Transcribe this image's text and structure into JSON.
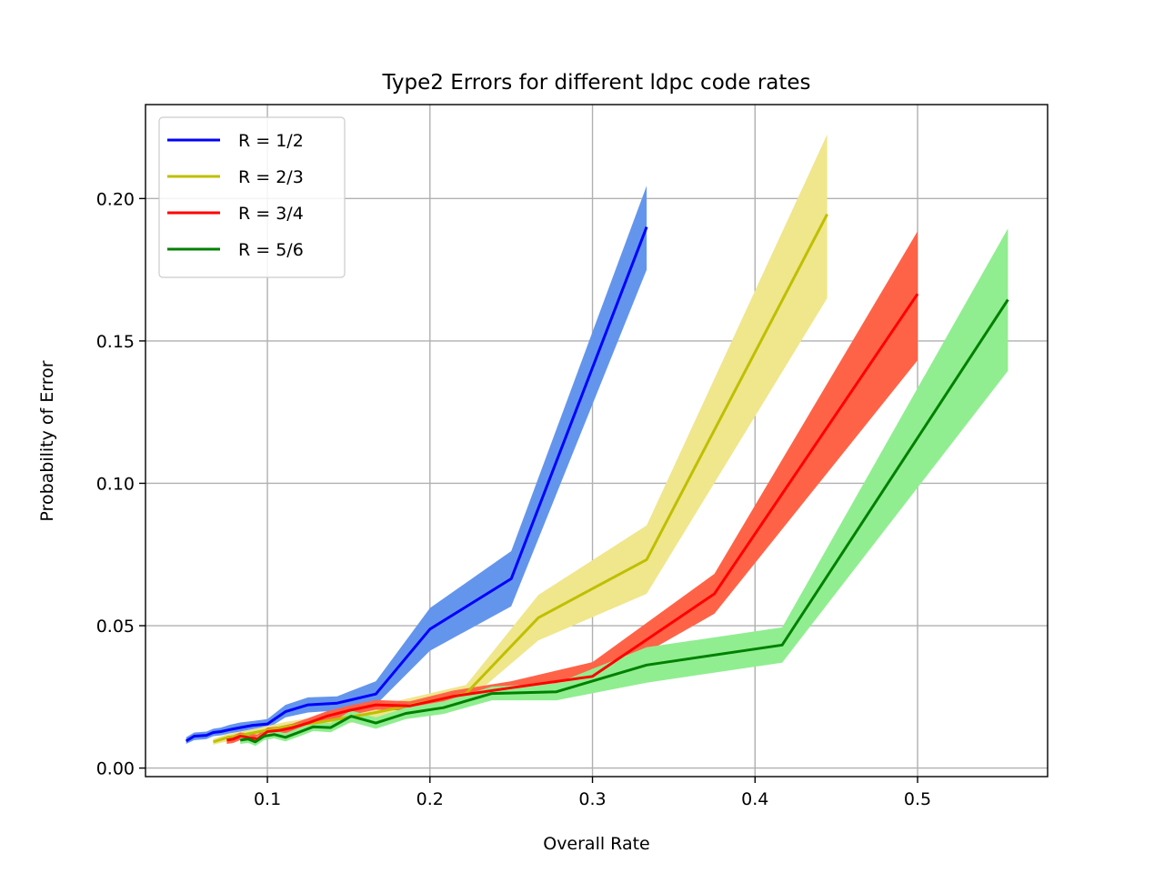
{
  "chart_data": {
    "type": "line",
    "title": "Type2 Errors for different ldpc code rates",
    "xlabel": "Overall Rate",
    "ylabel": "Probability of Error",
    "xlim": [
      0.025,
      0.58
    ],
    "ylim": [
      -0.003,
      0.233
    ],
    "xticks": [
      {
        "value": 0.1,
        "label": "0.1"
      },
      {
        "value": 0.2,
        "label": "0.2"
      },
      {
        "value": 0.3,
        "label": "0.3"
      },
      {
        "value": 0.4,
        "label": "0.4"
      },
      {
        "value": 0.5,
        "label": "0.5"
      }
    ],
    "yticks": [
      {
        "value": 0.0,
        "label": "0.00"
      },
      {
        "value": 0.05,
        "label": "0.05"
      },
      {
        "value": 0.1,
        "label": "0.10"
      },
      {
        "value": 0.15,
        "label": "0.15"
      },
      {
        "value": 0.2,
        "label": "0.20"
      }
    ],
    "grid": true,
    "legend_position": "top-left",
    "series": [
      {
        "name": "R = 1/2",
        "color": "#0000ff",
        "band_color": "#6495ed",
        "x": [
          0.05,
          0.055,
          0.0625,
          0.0667,
          0.0714,
          0.0769,
          0.0833,
          0.0909,
          0.1,
          0.1111,
          0.125,
          0.1429,
          0.1667,
          0.2,
          0.25,
          0.3333
        ],
        "y": [
          0.0095,
          0.0112,
          0.0115,
          0.0125,
          0.0128,
          0.0135,
          0.0142,
          0.015,
          0.0155,
          0.0198,
          0.0222,
          0.0228,
          0.026,
          0.0488,
          0.0665,
          0.19
        ],
        "lower": [
          0.0085,
          0.0098,
          0.0102,
          0.0112,
          0.0115,
          0.0122,
          0.0128,
          0.0135,
          0.0138,
          0.0178,
          0.0195,
          0.0202,
          0.0222,
          0.0412,
          0.0568,
          0.175
        ],
        "upper": [
          0.0108,
          0.0125,
          0.0128,
          0.0138,
          0.0142,
          0.0152,
          0.016,
          0.0165,
          0.0172,
          0.0222,
          0.0248,
          0.0252,
          0.0305,
          0.0562,
          0.0762,
          0.2045
        ]
      },
      {
        "name": "R = 2/3",
        "color": "#bfbf00",
        "band_color": "#f0e68c",
        "x": [
          0.0667,
          0.0741,
          0.0833,
          0.0952,
          0.1111,
          0.1333,
          0.1667,
          0.2222,
          0.2667,
          0.3333,
          0.4444
        ],
        "y": [
          0.0092,
          0.0105,
          0.0115,
          0.0128,
          0.0145,
          0.0162,
          0.0195,
          0.0262,
          0.0528,
          0.0732,
          0.1945
        ],
        "lower": [
          0.0082,
          0.0092,
          0.0101,
          0.0112,
          0.0128,
          0.0142,
          0.0172,
          0.0232,
          0.0448,
          0.0612,
          0.165
        ],
        "upper": [
          0.0102,
          0.0118,
          0.0128,
          0.0142,
          0.0162,
          0.0182,
          0.0218,
          0.0292,
          0.0608,
          0.0852,
          0.2225
        ]
      },
      {
        "name": "R = 3/4",
        "color": "#ff0000",
        "band_color": "#ff6347",
        "x": [
          0.075,
          0.0789,
          0.0833,
          0.0882,
          0.0938,
          0.1,
          0.1071,
          0.1154,
          0.125,
          0.1364,
          0.15,
          0.1667,
          0.1875,
          0.2143,
          0.25,
          0.3,
          0.375,
          0.5
        ],
        "y": [
          0.0098,
          0.0102,
          0.0112,
          0.0108,
          0.0102,
          0.0128,
          0.0132,
          0.0142,
          0.0158,
          0.0182,
          0.0202,
          0.0222,
          0.0218,
          0.0252,
          0.0282,
          0.0322,
          0.0612,
          0.1665
        ],
        "lower": [
          0.0085,
          0.0088,
          0.0098,
          0.0094,
          0.0085,
          0.0115,
          0.0118,
          0.0128,
          0.0142,
          0.0165,
          0.0185,
          0.0205,
          0.0202,
          0.0232,
          0.0262,
          0.0298,
          0.0542,
          0.1432
        ],
        "upper": [
          0.0112,
          0.0115,
          0.0125,
          0.0122,
          0.0118,
          0.0142,
          0.0146,
          0.0156,
          0.0175,
          0.0199,
          0.0219,
          0.0239,
          0.0234,
          0.0272,
          0.0305,
          0.0372,
          0.0682,
          0.1885
        ]
      },
      {
        "name": "R = 5/6",
        "color": "#008000",
        "band_color": "#90ee90",
        "x": [
          0.0833,
          0.0882,
          0.0926,
          0.098,
          0.1042,
          0.1111,
          0.119,
          0.1282,
          0.1389,
          0.1515,
          0.1667,
          0.1852,
          0.2083,
          0.2381,
          0.2778,
          0.3333,
          0.4167,
          0.5556
        ],
        "y": [
          0.0098,
          0.0102,
          0.0092,
          0.0112,
          0.0118,
          0.0108,
          0.0125,
          0.0145,
          0.0142,
          0.0182,
          0.0158,
          0.0192,
          0.0212,
          0.0262,
          0.0268,
          0.0362,
          0.0432,
          0.1645
        ],
        "lower": [
          0.0085,
          0.0088,
          0.0078,
          0.0098,
          0.0104,
          0.0094,
          0.011,
          0.013,
          0.0126,
          0.0162,
          0.0138,
          0.0172,
          0.019,
          0.0238,
          0.0238,
          0.03,
          0.037,
          0.1395
        ],
        "upper": [
          0.0112,
          0.0116,
          0.0106,
          0.0126,
          0.0132,
          0.0122,
          0.014,
          0.016,
          0.0158,
          0.0202,
          0.0178,
          0.0212,
          0.0234,
          0.0286,
          0.0298,
          0.0424,
          0.0494,
          0.1895
        ]
      }
    ]
  }
}
